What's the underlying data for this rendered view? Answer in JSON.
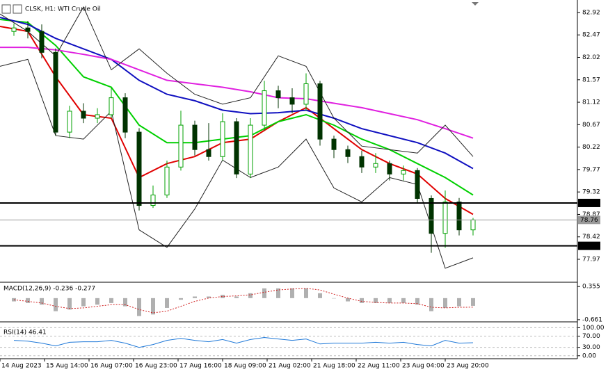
{
  "chart_data": [
    {
      "type": "candlestick",
      "title": "CLSK, H1: WTI Crude Oil",
      "x": [
        5,
        10,
        15,
        20,
        25,
        30,
        35,
        40,
        45,
        50,
        55,
        60,
        65,
        70,
        75,
        80,
        85,
        90,
        95,
        100,
        105,
        110,
        115,
        120,
        125,
        130,
        135,
        140,
        145,
        150,
        155,
        160,
        165,
        170
      ],
      "open": [
        82.54,
        82.61,
        82.54,
        82.12,
        80.52,
        80.94,
        80.8,
        80.87,
        81.21,
        80.52,
        79.05,
        79.26,
        79.82,
        80.66,
        80.17,
        80.03,
        80.73,
        79.68,
        80.66,
        81.35,
        81.21,
        81.08,
        81.49,
        80.38,
        80.17,
        80.03,
        79.82,
        79.89,
        79.68,
        79.75,
        79.19,
        78.49,
        79.12,
        78.56
      ],
      "high": [
        82.7,
        82.75,
        82.68,
        82.2,
        81.05,
        81.1,
        81.0,
        81.4,
        81.3,
        80.6,
        79.45,
        79.95,
        80.95,
        80.75,
        80.7,
        80.9,
        80.8,
        80.8,
        81.55,
        81.45,
        81.4,
        81.7,
        81.55,
        80.45,
        80.25,
        80.15,
        80.1,
        79.95,
        79.85,
        79.8,
        79.25,
        79.35,
        79.2,
        78.8
      ],
      "low": [
        82.45,
        82.4,
        82.0,
        80.45,
        80.4,
        80.7,
        80.7,
        80.8,
        80.4,
        78.95,
        79.0,
        79.2,
        79.75,
        80.05,
        79.95,
        79.95,
        79.6,
        79.6,
        80.55,
        81.0,
        80.9,
        80.95,
        80.25,
        80.0,
        79.9,
        79.7,
        79.7,
        79.55,
        79.55,
        79.1,
        78.1,
        78.2,
        78.45,
        78.45
      ],
      "close": [
        82.61,
        82.54,
        82.12,
        80.52,
        80.94,
        80.8,
        80.87,
        81.21,
        80.52,
        79.05,
        79.26,
        79.82,
        80.66,
        80.17,
        80.03,
        80.73,
        79.68,
        80.66,
        81.35,
        81.21,
        81.08,
        81.49,
        80.38,
        80.17,
        80.03,
        79.82,
        79.89,
        79.68,
        79.75,
        79.19,
        78.49,
        79.12,
        78.56,
        78.76
      ],
      "up_color": "#00a000",
      "down_color": "#003300",
      "line_x": [
        0,
        10,
        20,
        30,
        40,
        50,
        60,
        70,
        80,
        90,
        100,
        110,
        120,
        130,
        140,
        150,
        160,
        170
      ],
      "lines": [
        {
          "color": "#e00000",
          "values": [
            82.64,
            82.54,
            81.63,
            80.87,
            80.8,
            79.61,
            79.89,
            80.03,
            80.31,
            80.38,
            80.73,
            81.01,
            80.59,
            80.17,
            79.89,
            79.68,
            79.19,
            78.87
          ]
        },
        {
          "color": "#00d000",
          "values": [
            82.78,
            82.72,
            82.26,
            81.63,
            81.42,
            80.66,
            80.31,
            80.31,
            80.38,
            80.45,
            80.73,
            80.87,
            80.66,
            80.38,
            80.17,
            79.89,
            79.61,
            79.26
          ]
        },
        {
          "color": "#1010c0",
          "values": [
            82.82,
            82.68,
            82.4,
            82.19,
            81.98,
            81.56,
            81.28,
            81.15,
            80.96,
            80.89,
            80.91,
            80.96,
            80.8,
            80.59,
            80.45,
            80.31,
            80.1,
            79.79
          ]
        },
        {
          "color": "#e020e0",
          "values": [
            82.22,
            82.22,
            82.17,
            82.08,
            81.98,
            81.77,
            81.56,
            81.49,
            81.42,
            81.33,
            81.21,
            81.19,
            81.1,
            81.01,
            80.89,
            80.77,
            80.59,
            80.4
          ]
        },
        {
          "color": "#222222",
          "values": [
            82.89,
            82.54,
            82.05,
            83.03,
            81.77,
            82.19,
            81.7,
            81.28,
            81.08,
            81.21,
            82.05,
            81.84,
            80.8,
            80.24,
            80.17,
            80.1,
            80.66,
            80.03
          ]
        },
        {
          "color": "#222222",
          "values": [
            81.84,
            81.98,
            80.45,
            80.38,
            80.94,
            78.56,
            78.21,
            78.98,
            79.96,
            79.61,
            79.82,
            80.38,
            79.4,
            79.12,
            79.61,
            79.47,
            77.79,
            78.0
          ]
        }
      ],
      "levels": [
        {
          "value": 79.1,
          "label": "79.10",
          "color": "#000000"
        },
        {
          "value": 78.24,
          "label": "78.24",
          "color": "#000000"
        },
        {
          "value": 78.76,
          "label": "78.76",
          "color": "#9a9a9a"
        }
      ],
      "xlim": [
        0,
        207.5
      ],
      "xticks": [
        {
          "value": 0,
          "label": "14 Aug 2023"
        },
        {
          "value": 16,
          "label": "15 Aug 14:00"
        },
        {
          "value": 32,
          "label": "16 Aug 07:00"
        },
        {
          "value": 48,
          "label": "16 Aug 23:00"
        },
        {
          "value": 64,
          "label": "17 Aug 16:00"
        },
        {
          "value": 80,
          "label": "18 Aug 09:00"
        },
        {
          "value": 96,
          "label": "21 Aug 02:00"
        },
        {
          "value": 112,
          "label": "21 Aug 18:00"
        },
        {
          "value": 128,
          "label": "22 Aug 11:00"
        },
        {
          "value": 144,
          "label": "23 Aug 04:00"
        },
        {
          "value": 160,
          "label": "23 Aug 20:00"
        }
      ],
      "ylim": [
        77.51,
        83.17
      ],
      "yticks": [
        82.92,
        82.47,
        82.02,
        81.57,
        81.12,
        80.67,
        80.22,
        79.77,
        79.32,
        78.87,
        78.42,
        77.97
      ]
    },
    {
      "type": "macd",
      "title": "MACD(12,26,9) -0.236 -0.277",
      "values": [
        -0.1,
        -0.15,
        -0.2,
        -0.4,
        -0.35,
        -0.25,
        -0.2,
        -0.15,
        -0.25,
        -0.55,
        -0.5,
        -0.3,
        -0.05,
        0.05,
        0.05,
        0.1,
        0.05,
        0.15,
        0.3,
        0.3,
        0.3,
        0.3,
        0.15,
        0.0,
        -0.1,
        -0.15,
        -0.15,
        -0.15,
        -0.15,
        -0.2,
        -0.4,
        -0.3,
        -0.25,
        -0.236
      ],
      "signal": [
        -0.05,
        -0.1,
        -0.15,
        -0.25,
        -0.32,
        -0.3,
        -0.25,
        -0.2,
        -0.2,
        -0.35,
        -0.45,
        -0.4,
        -0.25,
        -0.1,
        0.0,
        0.05,
        0.07,
        0.1,
        0.18,
        0.25,
        0.28,
        0.3,
        0.25,
        0.12,
        0.0,
        -0.1,
        -0.13,
        -0.15,
        -0.15,
        -0.17,
        -0.28,
        -0.3,
        -0.28,
        -0.277
      ],
      "color": "#b0b0b0",
      "signal_color": "#d02020",
      "ylim": [
        -0.727,
        0.465
      ],
      "yticks": [
        0.355,
        -0.661
      ]
    },
    {
      "type": "line",
      "title": "RSI(14) 46.41",
      "values": [
        55,
        52,
        45,
        35,
        48,
        50,
        50,
        55,
        45,
        30,
        40,
        55,
        62,
        55,
        50,
        58,
        45,
        58,
        65,
        60,
        55,
        60,
        42,
        45,
        45,
        45,
        48,
        45,
        48,
        40,
        35,
        55,
        45,
        46.41
      ],
      "color": "#1e78d8",
      "ylim": [
        -10.5,
        118.4
      ],
      "yticks": [
        {
          "value": 100,
          "label": "100.00"
        },
        {
          "value": 70,
          "label": "70.00"
        },
        {
          "value": 30,
          "label": "30.00"
        },
        {
          "value": 0,
          "label": "0.00"
        }
      ],
      "grid": true
    }
  ]
}
